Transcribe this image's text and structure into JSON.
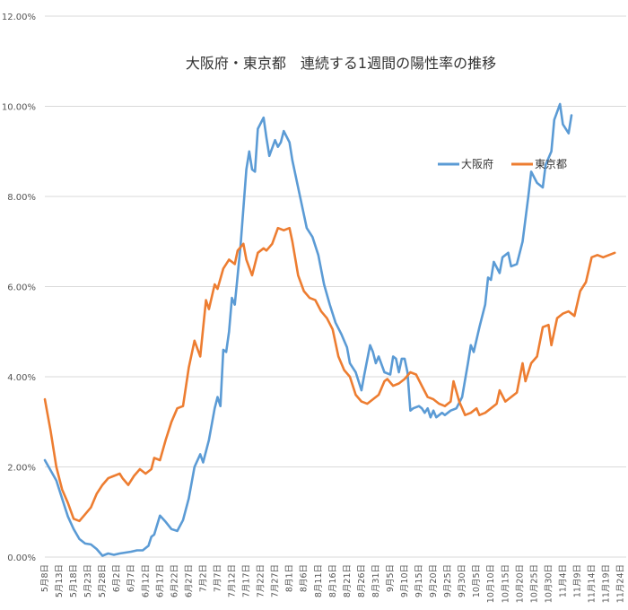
{
  "chart_data": {
    "type": "line",
    "title": "大阪府・東京都　連続する1週間の陽性率の推移",
    "xlabel": "",
    "ylabel": "",
    "ylim": [
      0,
      12
    ],
    "y_ticks": [
      "0.00%",
      "2.00%",
      "4.00%",
      "6.00%",
      "8.00%",
      "10.00%",
      "12.00%"
    ],
    "y_tick_values": [
      0,
      2,
      4,
      6,
      8,
      10,
      12
    ],
    "grid": true,
    "legend_position": "top-right",
    "x_tick_labels": [
      "5月8日",
      "5月13日",
      "5月18日",
      "5月23日",
      "5月28日",
      "6月2日",
      "6月7日",
      "6月12日",
      "6月17日",
      "6月22日",
      "6月27日",
      "7月2日",
      "7月7日",
      "7月12日",
      "7月17日",
      "7月22日",
      "7月27日",
      "8月1日",
      "8月6日",
      "8月11日",
      "8月16日",
      "8月21日",
      "8月26日",
      "8月31日",
      "9月5日",
      "9月10日",
      "9月15日",
      "9月20日",
      "9月25日",
      "9月30日",
      "10月5日",
      "10月10日",
      "10月15日",
      "10月20日",
      "10月25日",
      "10月30日",
      "11月4日",
      "11月9日",
      "11月14日",
      "11月19日",
      "11月24日"
    ],
    "x_tick_day_index": [
      0,
      5,
      10,
      15,
      20,
      25,
      30,
      35,
      40,
      45,
      50,
      55,
      60,
      65,
      70,
      75,
      80,
      85,
      90,
      95,
      100,
      105,
      110,
      115,
      120,
      125,
      130,
      135,
      140,
      145,
      150,
      155,
      160,
      165,
      170,
      175,
      180,
      185,
      190,
      195,
      200
    ],
    "x_range_days": [
      0,
      202
    ],
    "series": [
      {
        "name": "大阪府",
        "color": "#5b9bd5",
        "points": [
          [
            0,
            2.15
          ],
          [
            4,
            1.7
          ],
          [
            6,
            1.3
          ],
          [
            8,
            0.9
          ],
          [
            10,
            0.62
          ],
          [
            12,
            0.4
          ],
          [
            14,
            0.3
          ],
          [
            16,
            0.28
          ],
          [
            18,
            0.18
          ],
          [
            20,
            0.03
          ],
          [
            22,
            0.08
          ],
          [
            24,
            0.05
          ],
          [
            26,
            0.08
          ],
          [
            28,
            0.1
          ],
          [
            30,
            0.12
          ],
          [
            32,
            0.15
          ],
          [
            34,
            0.15
          ],
          [
            36,
            0.25
          ],
          [
            37,
            0.45
          ],
          [
            38,
            0.5
          ],
          [
            40,
            0.92
          ],
          [
            42,
            0.78
          ],
          [
            44,
            0.62
          ],
          [
            46,
            0.58
          ],
          [
            48,
            0.82
          ],
          [
            50,
            1.3
          ],
          [
            52,
            2.0
          ],
          [
            54,
            2.28
          ],
          [
            55,
            2.1
          ],
          [
            57,
            2.6
          ],
          [
            59,
            3.3
          ],
          [
            60,
            3.55
          ],
          [
            61,
            3.35
          ],
          [
            62,
            4.6
          ],
          [
            63,
            4.55
          ],
          [
            64,
            5.0
          ],
          [
            65,
            5.75
          ],
          [
            66,
            5.6
          ],
          [
            67,
            6.25
          ],
          [
            68,
            6.9
          ],
          [
            70,
            8.6
          ],
          [
            71,
            9.0
          ],
          [
            72,
            8.6
          ],
          [
            73,
            8.55
          ],
          [
            74,
            9.5
          ],
          [
            76,
            9.75
          ],
          [
            77,
            9.3
          ],
          [
            78,
            8.9
          ],
          [
            80,
            9.25
          ],
          [
            81,
            9.1
          ],
          [
            82,
            9.2
          ],
          [
            83,
            9.45
          ],
          [
            85,
            9.2
          ],
          [
            86,
            8.8
          ],
          [
            88,
            8.2
          ],
          [
            90,
            7.6
          ],
          [
            91,
            7.3
          ],
          [
            93,
            7.1
          ],
          [
            95,
            6.7
          ],
          [
            97,
            6.05
          ],
          [
            99,
            5.6
          ],
          [
            101,
            5.2
          ],
          [
            103,
            4.95
          ],
          [
            105,
            4.65
          ],
          [
            106,
            4.3
          ],
          [
            108,
            4.1
          ],
          [
            110,
            3.7
          ],
          [
            111,
            4.05
          ],
          [
            113,
            4.7
          ],
          [
            114,
            4.55
          ],
          [
            115,
            4.3
          ],
          [
            116,
            4.45
          ],
          [
            118,
            4.1
          ],
          [
            120,
            4.05
          ],
          [
            121,
            4.45
          ],
          [
            122,
            4.4
          ],
          [
            123,
            4.1
          ],
          [
            124,
            4.4
          ],
          [
            125,
            4.4
          ],
          [
            126,
            4.1
          ],
          [
            127,
            3.25
          ],
          [
            128,
            3.3
          ],
          [
            130,
            3.35
          ],
          [
            131,
            3.3
          ],
          [
            132,
            3.2
          ],
          [
            133,
            3.3
          ],
          [
            134,
            3.1
          ],
          [
            135,
            3.25
          ],
          [
            136,
            3.1
          ],
          [
            138,
            3.2
          ],
          [
            139,
            3.15
          ],
          [
            141,
            3.25
          ],
          [
            143,
            3.3
          ],
          [
            145,
            3.55
          ],
          [
            147,
            4.3
          ],
          [
            148,
            4.7
          ],
          [
            149,
            4.55
          ],
          [
            151,
            5.1
          ],
          [
            153,
            5.6
          ],
          [
            154,
            6.2
          ],
          [
            155,
            6.15
          ],
          [
            156,
            6.55
          ],
          [
            158,
            6.3
          ],
          [
            159,
            6.65
          ],
          [
            161,
            6.75
          ],
          [
            162,
            6.45
          ],
          [
            164,
            6.5
          ],
          [
            166,
            7.0
          ],
          [
            168,
            8.0
          ],
          [
            169,
            8.55
          ],
          [
            171,
            8.3
          ],
          [
            173,
            8.2
          ],
          [
            174,
            8.7
          ],
          [
            176,
            9.0
          ],
          [
            177,
            9.7
          ],
          [
            179,
            10.05
          ],
          [
            180,
            9.6
          ],
          [
            182,
            9.4
          ],
          [
            183,
            9.8
          ]
        ]
      },
      {
        "name": "東京都",
        "color": "#ed7d31",
        "points": [
          [
            0,
            3.5
          ],
          [
            2,
            2.8
          ],
          [
            4,
            2.0
          ],
          [
            6,
            1.5
          ],
          [
            8,
            1.2
          ],
          [
            10,
            0.85
          ],
          [
            12,
            0.8
          ],
          [
            14,
            0.95
          ],
          [
            16,
            1.1
          ],
          [
            18,
            1.4
          ],
          [
            20,
            1.6
          ],
          [
            22,
            1.75
          ],
          [
            24,
            1.8
          ],
          [
            26,
            1.85
          ],
          [
            27,
            1.75
          ],
          [
            29,
            1.6
          ],
          [
            31,
            1.8
          ],
          [
            33,
            1.95
          ],
          [
            35,
            1.85
          ],
          [
            37,
            1.95
          ],
          [
            38,
            2.2
          ],
          [
            40,
            2.15
          ],
          [
            42,
            2.6
          ],
          [
            44,
            3.0
          ],
          [
            46,
            3.3
          ],
          [
            48,
            3.35
          ],
          [
            50,
            4.2
          ],
          [
            52,
            4.8
          ],
          [
            54,
            4.45
          ],
          [
            56,
            5.7
          ],
          [
            57,
            5.5
          ],
          [
            59,
            6.05
          ],
          [
            60,
            5.95
          ],
          [
            62,
            6.4
          ],
          [
            64,
            6.6
          ],
          [
            66,
            6.5
          ],
          [
            67,
            6.8
          ],
          [
            69,
            6.95
          ],
          [
            70,
            6.6
          ],
          [
            72,
            6.25
          ],
          [
            74,
            6.75
          ],
          [
            76,
            6.85
          ],
          [
            77,
            6.8
          ],
          [
            79,
            6.95
          ],
          [
            81,
            7.3
          ],
          [
            83,
            7.25
          ],
          [
            85,
            7.3
          ],
          [
            86,
            7.0
          ],
          [
            88,
            6.25
          ],
          [
            90,
            5.9
          ],
          [
            92,
            5.75
          ],
          [
            94,
            5.7
          ],
          [
            96,
            5.45
          ],
          [
            98,
            5.3
          ],
          [
            100,
            5.05
          ],
          [
            102,
            4.45
          ],
          [
            104,
            4.15
          ],
          [
            106,
            4.0
          ],
          [
            108,
            3.6
          ],
          [
            110,
            3.45
          ],
          [
            112,
            3.4
          ],
          [
            114,
            3.5
          ],
          [
            116,
            3.6
          ],
          [
            118,
            3.9
          ],
          [
            119,
            3.95
          ],
          [
            121,
            3.8
          ],
          [
            123,
            3.85
          ],
          [
            125,
            3.95
          ],
          [
            127,
            4.1
          ],
          [
            129,
            4.05
          ],
          [
            131,
            3.8
          ],
          [
            133,
            3.55
          ],
          [
            135,
            3.5
          ],
          [
            137,
            3.4
          ],
          [
            139,
            3.35
          ],
          [
            141,
            3.45
          ],
          [
            142,
            3.9
          ],
          [
            144,
            3.45
          ],
          [
            146,
            3.15
          ],
          [
            148,
            3.2
          ],
          [
            150,
            3.3
          ],
          [
            151,
            3.15
          ],
          [
            153,
            3.2
          ],
          [
            155,
            3.3
          ],
          [
            157,
            3.4
          ],
          [
            158,
            3.7
          ],
          [
            160,
            3.45
          ],
          [
            162,
            3.55
          ],
          [
            164,
            3.65
          ],
          [
            166,
            4.3
          ],
          [
            167,
            3.9
          ],
          [
            169,
            4.3
          ],
          [
            171,
            4.45
          ],
          [
            173,
            5.1
          ],
          [
            175,
            5.15
          ],
          [
            176,
            4.7
          ],
          [
            178,
            5.3
          ],
          [
            180,
            5.4
          ],
          [
            182,
            5.45
          ],
          [
            184,
            5.35
          ],
          [
            186,
            5.9
          ],
          [
            188,
            6.1
          ],
          [
            190,
            6.65
          ],
          [
            192,
            6.7
          ],
          [
            194,
            6.65
          ],
          [
            196,
            6.7
          ],
          [
            198,
            6.75
          ]
        ]
      }
    ]
  }
}
